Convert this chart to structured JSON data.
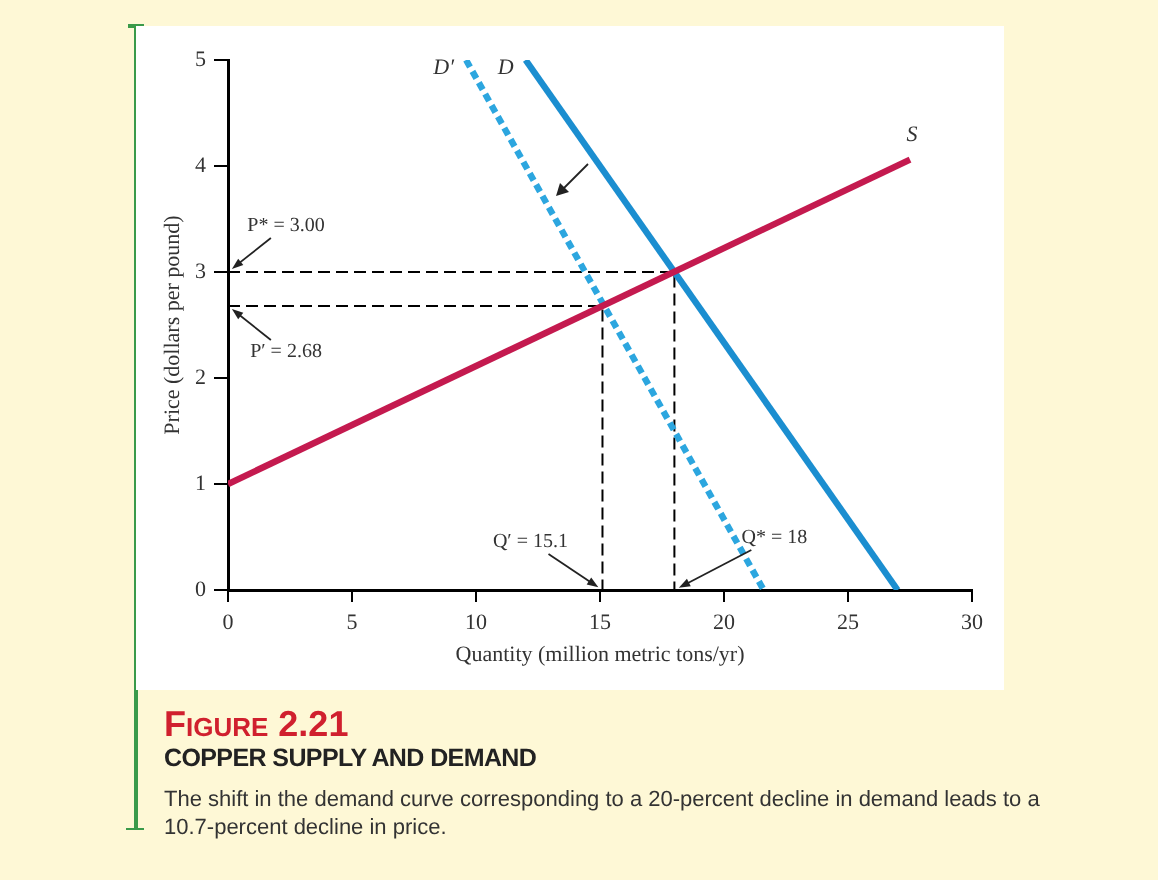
{
  "chart_data": {
    "type": "line",
    "title": "Figure 2.21",
    "subtitle": "COPPER SUPPLY AND DEMAND",
    "xlabel": "Quantity (million metric tons/yr)",
    "ylabel": "Price (dollars per pound)",
    "xlim": [
      0,
      30
    ],
    "xticks": [
      0,
      5,
      10,
      15,
      20,
      25,
      30
    ],
    "ylim": [
      0,
      5
    ],
    "yticks": [
      0,
      1,
      2,
      3,
      4,
      5
    ],
    "grid": false,
    "legend": false,
    "marker": "none",
    "series": [
      {
        "name": "S",
        "color": "#c41a4f",
        "x": [
          0,
          27.5
        ],
        "values": [
          1,
          4.06
        ]
      },
      {
        "name": "D",
        "color": "#1b8ed0",
        "x": [
          12,
          27
        ],
        "values": [
          5,
          0
        ]
      },
      {
        "name": "D′",
        "color": "#2ca6df",
        "x": [
          9.6,
          21.6
        ],
        "values": [
          5,
          0
        ],
        "line_style": "dashed"
      },
      {
        "color": "#000000",
        "x": [
          0,
          18,
          18
        ],
        "values": [
          3,
          3,
          0
        ],
        "line_style": "dashed"
      },
      {
        "color": "#000000",
        "x": [
          0,
          15.1,
          15.1
        ],
        "values": [
          2.68,
          2.68,
          0
        ],
        "line_style": "dashed"
      }
    ],
    "annotations": [
      {
        "text": "P* = 3.00",
        "x": 0,
        "y": 3
      },
      {
        "text": "P′ = 2.68",
        "x": 0,
        "y": 2.68
      },
      {
        "text": "Q′ = 15.1",
        "x": 15.1,
        "y": 0
      },
      {
        "text": "Q* = 18",
        "x": 18,
        "y": 0
      },
      "The shift in the demand curve corresponding to a 20-percent decline in demand leads to a 10.7-percent decline in price."
    ]
  }
}
